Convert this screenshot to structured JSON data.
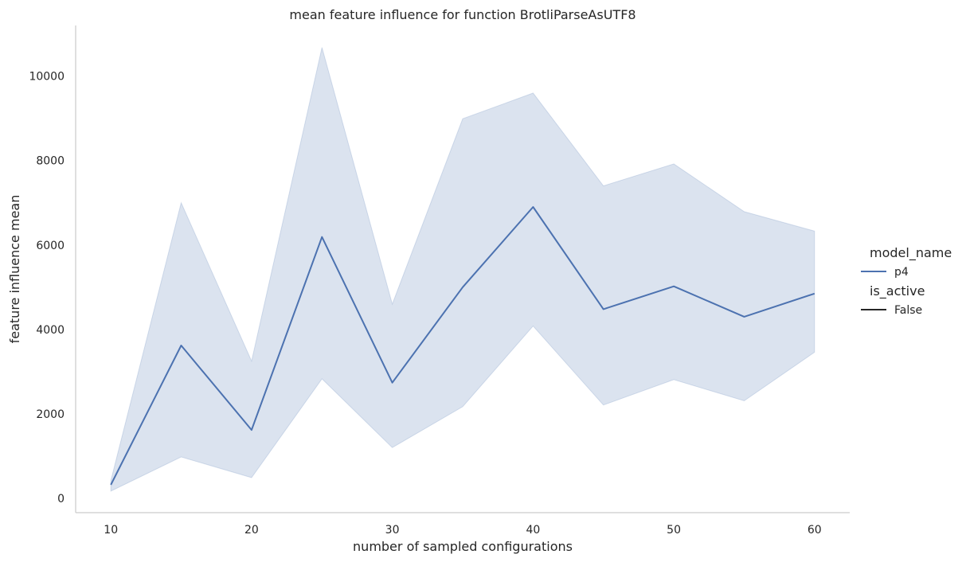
{
  "chart_data": {
    "type": "line",
    "title": "mean feature influence for function BrotliParseAsUTF8",
    "xlabel": "number of sampled configurations",
    "ylabel": "feature influence mean",
    "x": [
      10,
      15,
      20,
      25,
      30,
      35,
      40,
      45,
      50,
      55,
      60
    ],
    "xlim": [
      7.5,
      62.5
    ],
    "ylim": [
      -340,
      11200
    ],
    "xticks": [
      10,
      20,
      30,
      40,
      50,
      60
    ],
    "yticks": [
      0,
      2000,
      4000,
      6000,
      8000,
      10000
    ],
    "grid": false,
    "series": [
      {
        "name": "p4",
        "values": [
          320,
          3620,
          1620,
          6190,
          2740,
          5000,
          6900,
          4480,
          5020,
          4300,
          4850
        ],
        "ci_upper": [
          420,
          7000,
          3250,
          10680,
          4600,
          8990,
          9600,
          7400,
          7920,
          6790,
          6330
        ],
        "ci_lower": [
          170,
          980,
          490,
          2830,
          1200,
          2170,
          4080,
          2210,
          2810,
          2310,
          3460
        ],
        "color": "#4c72b0",
        "band_color": "#4c72b0"
      }
    ],
    "legend": {
      "placement": "right",
      "hue_title": "model_name",
      "hue_entries": [
        {
          "label": "p4",
          "color": "#4c72b0"
        }
      ],
      "style_title": "is_active",
      "style_entries": [
        {
          "label": "False",
          "color": "#262626"
        }
      ]
    }
  }
}
